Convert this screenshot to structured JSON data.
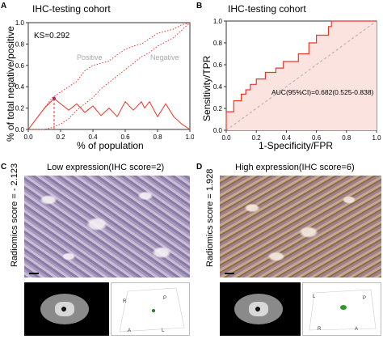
{
  "panels": {
    "A": {
      "label": "A",
      "title": "IHC-testing cohort",
      "ylabel": "% of total negative/positive",
      "xlabel": "% of population",
      "ks_text": "KS=0.292",
      "legend": [
        "Positive",
        "Negative"
      ],
      "xticks": [
        "0.0",
        "0.2",
        "0.4",
        "0.6",
        "0.8",
        "1.0"
      ],
      "yticks": [
        "0.0",
        "0.2",
        "0.4",
        "0.6",
        "0.8",
        "1.0"
      ]
    },
    "B": {
      "label": "B",
      "title": "IHC-testing cohort",
      "ylabel": "Sensitivity/TPR",
      "xlabel": "1-Specificity/FPR",
      "auc_text": "AUC(95%CI)=0.682(0.525-0.838)",
      "xticks": [
        "0.0",
        "0.2",
        "0.4",
        "0.6",
        "0.8",
        "1.0"
      ],
      "yticks": [
        "0.0",
        "0.2",
        "0.4",
        "0.6",
        "0.8",
        "1.0"
      ]
    },
    "C": {
      "label": "C",
      "title": "Low expression(IHC score=2)",
      "ylabel": "Radiomics score = - 2.123",
      "render_labels": [
        "R",
        "P",
        "A",
        "L"
      ]
    },
    "D": {
      "label": "D",
      "title": "High expression(IHC score=6)",
      "ylabel": "Radiomics score = 1.928",
      "render_labels": [
        "L",
        "P",
        "R",
        "A"
      ]
    }
  },
  "chart_data": [
    {
      "type": "line",
      "panel": "A",
      "title": "IHC-testing cohort",
      "xlabel": "% of population",
      "ylabel": "% of total negative/positive",
      "xlim": [
        0,
        1
      ],
      "ylim": [
        0,
        1
      ],
      "annotation": "KS=0.292",
      "ks_x": 0.16,
      "series": [
        {
          "name": "Positive",
          "style": "dotted",
          "color": "#e8372b",
          "x": [
            0,
            0.05,
            0.1,
            0.15,
            0.2,
            0.25,
            0.3,
            0.35,
            0.4,
            0.45,
            0.5,
            0.55,
            0.6,
            0.65,
            0.7,
            0.75,
            0.8,
            0.85,
            0.9,
            0.95,
            1.0
          ],
          "y": [
            0,
            0.1,
            0.2,
            0.3,
            0.35,
            0.4,
            0.45,
            0.55,
            0.6,
            0.62,
            0.64,
            0.7,
            0.75,
            0.78,
            0.8,
            0.85,
            0.9,
            0.92,
            0.94,
            0.98,
            1.0
          ]
        },
        {
          "name": "Negative",
          "style": "dotted",
          "color": "#e8372b",
          "x": [
            0,
            0.1,
            0.15,
            0.2,
            0.25,
            0.3,
            0.35,
            0.4,
            0.45,
            0.5,
            0.55,
            0.6,
            0.65,
            0.7,
            0.75,
            0.8,
            0.85,
            0.9,
            0.95,
            1.0
          ],
          "y": [
            0,
            0.0,
            0.02,
            0.05,
            0.1,
            0.18,
            0.24,
            0.3,
            0.38,
            0.44,
            0.5,
            0.56,
            0.62,
            0.68,
            0.72,
            0.78,
            0.82,
            0.86,
            0.93,
            1.0
          ]
        },
        {
          "name": "",
          "style": "solid",
          "color": "#e8372b",
          "x": [
            0,
            0.05,
            0.1,
            0.16,
            0.2,
            0.25,
            0.3,
            0.35,
            0.4,
            0.45,
            0.5,
            0.55,
            0.6,
            0.65,
            0.7,
            0.72,
            0.75,
            0.8,
            0.85,
            0.9,
            0.95,
            1.0
          ],
          "y": [
            0,
            0.1,
            0.2,
            0.29,
            0.24,
            0.18,
            0.24,
            0.16,
            0.22,
            0.13,
            0.2,
            0.12,
            0.26,
            0.18,
            0.26,
            0.2,
            0.26,
            0.12,
            0.24,
            0.12,
            0.05,
            0.0
          ]
        }
      ]
    },
    {
      "type": "line",
      "panel": "B",
      "title": "IHC-testing cohort",
      "xlabel": "1-Specificity/FPR",
      "ylabel": "Sensitivity/TPR",
      "xlim": [
        0,
        1
      ],
      "ylim": [
        0,
        1
      ],
      "annotation": "AUC(95%CI)=0.682(0.525-0.838)",
      "auc": 0.682,
      "ci": [
        0.525,
        0.838
      ],
      "series": [
        {
          "name": "",
          "style": "step",
          "color": "#e8372b",
          "x": [
            0,
            0,
            0.05,
            0.05,
            0.1,
            0.1,
            0.13,
            0.13,
            0.16,
            0.16,
            0.2,
            0.2,
            0.26,
            0.26,
            0.33,
            0.33,
            0.38,
            0.38,
            0.48,
            0.48,
            0.55,
            0.55,
            0.6,
            0.6,
            0.68,
            0.68,
            0.7,
            0.7,
            1.0
          ],
          "y": [
            0,
            0.17,
            0.17,
            0.27,
            0.27,
            0.33,
            0.33,
            0.37,
            0.37,
            0.42,
            0.42,
            0.47,
            0.47,
            0.53,
            0.53,
            0.57,
            0.57,
            0.63,
            0.63,
            0.7,
            0.7,
            0.8,
            0.8,
            0.87,
            0.87,
            0.95,
            0.95,
            1.0,
            1.0
          ]
        },
        {
          "name": "",
          "style": "dashed",
          "color": "#aaaaaa",
          "x": [
            0,
            1
          ],
          "y": [
            0,
            1
          ]
        }
      ]
    }
  ],
  "colors": {
    "red": "#e8372b",
    "shade": "#fbe3e0"
  }
}
